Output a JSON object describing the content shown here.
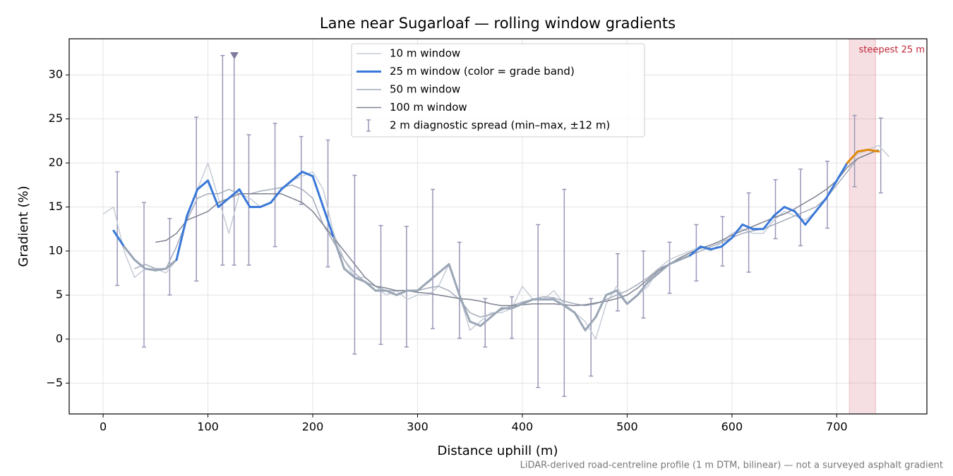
{
  "chart_data": {
    "type": "line",
    "title": "Lane near Sugarloaf — rolling window gradients",
    "xlabel": "Distance uphill (m)",
    "ylabel": "Gradient (%)",
    "note": "LiDAR-derived road-centreline profile (1 m DTM, bilinear) — not a surveyed asphalt gradient",
    "xlim": [
      -32.4,
      786
    ],
    "ylim": [
      -8.5,
      34.1
    ],
    "xticks": [
      0,
      100,
      200,
      300,
      400,
      500,
      600,
      700
    ],
    "yticks": [
      {
        "value": -5,
        "label": "−5"
      },
      0,
      5,
      10,
      15,
      20,
      25,
      30
    ],
    "grid": true,
    "legend": "upper center",
    "x": [
      0,
      10,
      20,
      30,
      40,
      50,
      60,
      70,
      80,
      90,
      100,
      110,
      120,
      130,
      140,
      150,
      160,
      170,
      180,
      190,
      200,
      210,
      220,
      230,
      240,
      250,
      260,
      270,
      280,
      290,
      300,
      310,
      320,
      330,
      340,
      350,
      360,
      370,
      380,
      390,
      400,
      410,
      420,
      430,
      440,
      450,
      460,
      470,
      480,
      490,
      500,
      510,
      520,
      530,
      540,
      550,
      560,
      570,
      580,
      590,
      600,
      610,
      620,
      630,
      640,
      650,
      660,
      670,
      680,
      690,
      700,
      710,
      720,
      730,
      740,
      750
    ],
    "series": [
      {
        "name": "10 m window",
        "color": "#c5ccd6",
        "values": [
          14.2,
          15,
          10,
          7,
          8,
          8,
          7.5,
          9,
          14,
          17,
          20,
          16,
          12,
          16.5,
          16,
          15,
          15.5,
          17,
          18,
          18.5,
          19,
          17,
          12,
          9,
          7,
          7,
          6,
          5,
          5.5,
          4.5,
          5,
          5,
          6,
          8.5,
          5,
          1,
          2,
          3,
          3,
          3.5,
          6,
          4.5,
          4.5,
          5.5,
          4,
          3,
          2,
          0,
          4,
          6,
          4,
          5,
          6,
          8,
          9,
          9.5,
          10,
          10.5,
          10,
          11,
          12,
          12.5,
          12,
          12,
          13.5,
          14.5,
          14,
          13.5,
          14.5,
          16,
          18,
          20,
          21,
          21.5,
          22,
          20.7
        ]
      },
      {
        "name": "25 m window (color = grade band)",
        "color": "#3a78d8",
        "band_colors": [
          "#9aa5b5",
          "#3a78d8",
          "#e0890a"
        ],
        "band_edges": [
          10,
          20
        ],
        "values": [
          null,
          12.3,
          10.5,
          9,
          8,
          7.8,
          8,
          9,
          14,
          17,
          18,
          15,
          16,
          17,
          15,
          15,
          15.5,
          17,
          18,
          19,
          18.5,
          15,
          11.5,
          8,
          7,
          6.5,
          5.5,
          5.5,
          5,
          5.5,
          5.5,
          6.5,
          7.5,
          8.5,
          5,
          2,
          1.5,
          2.5,
          3.5,
          3.5,
          4,
          4.5,
          4.5,
          4.5,
          3.8,
          3,
          1,
          2.5,
          5,
          5.5,
          4,
          5,
          6.5,
          7.5,
          8.5,
          9,
          9.5,
          10.5,
          10.2,
          10.5,
          11.5,
          13,
          12.5,
          12.5,
          14,
          15,
          14.5,
          13,
          14.5,
          16,
          18,
          20,
          21.3,
          21.5,
          21.3,
          null
        ]
      },
      {
        "name": "50 m window",
        "color": "#a3abbb",
        "values": [
          null,
          null,
          null,
          8,
          8.5,
          8,
          8,
          10.5,
          13.5,
          16,
          16.5,
          16.5,
          17,
          16.5,
          16.5,
          16.8,
          17,
          17.2,
          17.5,
          17,
          16,
          13,
          11,
          9,
          7.5,
          6.5,
          6,
          5.5,
          5.5,
          5.5,
          5.5,
          5.8,
          6,
          5.5,
          4.5,
          3,
          2.5,
          2.8,
          3.3,
          3.8,
          4.2,
          4.5,
          4.8,
          4.7,
          4.3,
          4,
          3.8,
          4,
          4.5,
          5,
          5.5,
          6.2,
          7,
          8,
          8.5,
          9,
          9.5,
          10,
          10.5,
          11,
          11.5,
          12,
          12.3,
          12.5,
          13,
          13.5,
          14,
          14.5,
          15,
          16,
          17.5,
          19,
          20.5,
          21,
          21.5,
          null
        ]
      },
      {
        "name": "100 m window",
        "color": "#7d8290",
        "values": [
          null,
          null,
          null,
          null,
          null,
          11,
          11.2,
          12,
          13.5,
          14,
          14.5,
          15.5,
          16,
          16.5,
          16.5,
          16.5,
          16.5,
          16.5,
          16,
          15.5,
          14.5,
          13,
          11.5,
          10,
          8.5,
          7,
          6,
          5.8,
          5.5,
          5.5,
          5.3,
          5.2,
          5,
          4.8,
          4.6,
          4.5,
          4.3,
          4,
          3.8,
          3.8,
          3.9,
          4,
          4,
          4,
          3.9,
          3.8,
          3.9,
          4.1,
          4.3,
          4.6,
          5,
          5.8,
          6.8,
          7.8,
          8.5,
          9.2,
          9.8,
          10.3,
          10.7,
          11.2,
          11.8,
          12.3,
          12.8,
          13.3,
          13.8,
          14.2,
          14.8,
          15.5,
          16.2,
          17,
          18,
          19.5,
          20.5,
          21,
          21.5,
          null
        ]
      }
    ],
    "errorbars": {
      "name": "2 m diagnostic spread (min–max, ±12 m)",
      "color": "#9a96b8",
      "x": [
        13.5,
        39,
        63.5,
        89,
        114,
        125,
        139,
        164,
        189,
        214.5,
        240,
        265,
        289.5,
        314.5,
        340,
        364.5,
        390,
        415,
        440,
        465.5,
        491,
        515.5,
        540.5,
        566,
        591,
        616,
        641.5,
        665.5,
        691,
        717,
        742
      ],
      "min": [
        6.1,
        -0.9,
        5,
        6.6,
        8.4,
        8.4,
        8.4,
        10.5,
        15.3,
        8.2,
        -1.7,
        -0.6,
        -0.9,
        1.2,
        0.1,
        -0.9,
        0.1,
        -5.5,
        -6.5,
        -4.2,
        3.2,
        2.4,
        5.2,
        6.6,
        8.3,
        7.6,
        11.4,
        10.6,
        12.6,
        17.3,
        16.6
      ],
      "max": [
        19,
        15.5,
        13.7,
        25.2,
        32.2,
        32.2,
        23.2,
        24.5,
        23,
        22.6,
        18.6,
        12.9,
        12.8,
        17,
        11,
        4.6,
        4.8,
        13,
        17,
        4.6,
        9.7,
        10,
        11,
        13,
        13.9,
        16.6,
        18.1,
        19.3,
        20.2,
        25.4,
        25.1
      ]
    },
    "highlight": {
      "xmin": 712,
      "xmax": 737,
      "label": "steepest 25 m",
      "color": "#c0283a"
    }
  }
}
